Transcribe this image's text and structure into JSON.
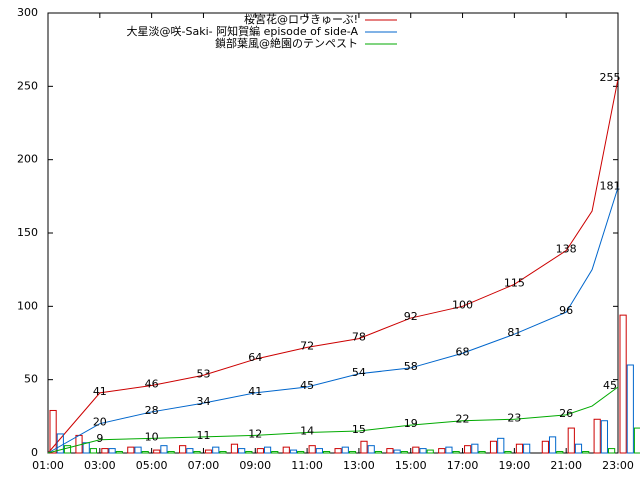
{
  "chart_data": {
    "type": "line",
    "x": [
      1,
      3,
      5,
      7,
      9,
      11,
      13,
      15,
      17,
      19,
      21,
      22,
      23
    ],
    "bar_x": [
      1,
      2,
      3,
      4,
      5,
      6,
      7,
      8,
      9,
      10,
      11,
      12,
      13,
      14,
      15,
      16,
      17,
      18,
      19,
      20,
      21,
      22,
      23
    ],
    "series": [
      {
        "name": "桜宮花@ロウきゅーぶ!",
        "color": "#cc0000",
        "values": [
          0,
          41,
          46,
          53,
          64,
          72,
          78,
          92,
          100,
          115,
          138,
          165,
          255
        ],
        "value_labels": [
          null,
          "41",
          "46",
          "53",
          "64",
          "72",
          "78",
          "92",
          "100",
          "115",
          "138",
          null,
          "255"
        ],
        "bars": [
          29,
          12,
          3,
          4,
          2,
          5,
          2,
          6,
          3,
          4,
          5,
          3,
          8,
          3,
          4,
          3,
          5,
          8,
          6,
          8,
          17,
          23,
          94
        ]
      },
      {
        "name": "大星淡@咲-Saki- 阿知賀編 episode of side-A",
        "color": "#0066cc",
        "values": [
          0,
          20,
          28,
          34,
          41,
          45,
          54,
          58,
          68,
          81,
          96,
          125,
          181
        ],
        "value_labels": [
          null,
          "20",
          "28",
          "34",
          "41",
          "45",
          "54",
          "58",
          "68",
          "81",
          "96",
          null,
          "181"
        ],
        "bars": [
          13,
          7,
          3,
          4,
          5,
          3,
          4,
          3,
          4,
          2,
          3,
          4,
          5,
          2,
          3,
          4,
          6,
          10,
          6,
          11,
          6,
          22,
          60
        ]
      },
      {
        "name": "鎖部葉風@絶園のテンペスト",
        "color": "#00aa00",
        "values": [
          0,
          9,
          10,
          11,
          12,
          14,
          15,
          19,
          22,
          23,
          26,
          32,
          45
        ],
        "value_labels": [
          null,
          "9",
          "10",
          "11",
          "12",
          "14",
          "15",
          "19",
          "22",
          "23",
          "26",
          null,
          "45"
        ],
        "bars": [
          5,
          3,
          1,
          1,
          1,
          1,
          1,
          1,
          1,
          1,
          1,
          1,
          1,
          1,
          2,
          1,
          1,
          1,
          0,
          1,
          1,
          3,
          17
        ]
      }
    ],
    "xlim": [
      1,
      23
    ],
    "xticks": [
      {
        "value": 1,
        "label": "01:00"
      },
      {
        "value": 3,
        "label": "03:00"
      },
      {
        "value": 5,
        "label": "05:00"
      },
      {
        "value": 7,
        "label": "07:00"
      },
      {
        "value": 9,
        "label": "09:00"
      },
      {
        "value": 11,
        "label": "11:00"
      },
      {
        "value": 13,
        "label": "13:00"
      },
      {
        "value": 15,
        "label": "15:00"
      },
      {
        "value": 17,
        "label": "17:00"
      },
      {
        "value": 19,
        "label": "19:00"
      },
      {
        "value": 21,
        "label": "21:00"
      },
      {
        "value": 23,
        "label": "23:00"
      }
    ],
    "ylim": [
      0,
      300
    ],
    "yticks": [
      0,
      50,
      100,
      150,
      200,
      250,
      300
    ],
    "legend": "top-center"
  }
}
